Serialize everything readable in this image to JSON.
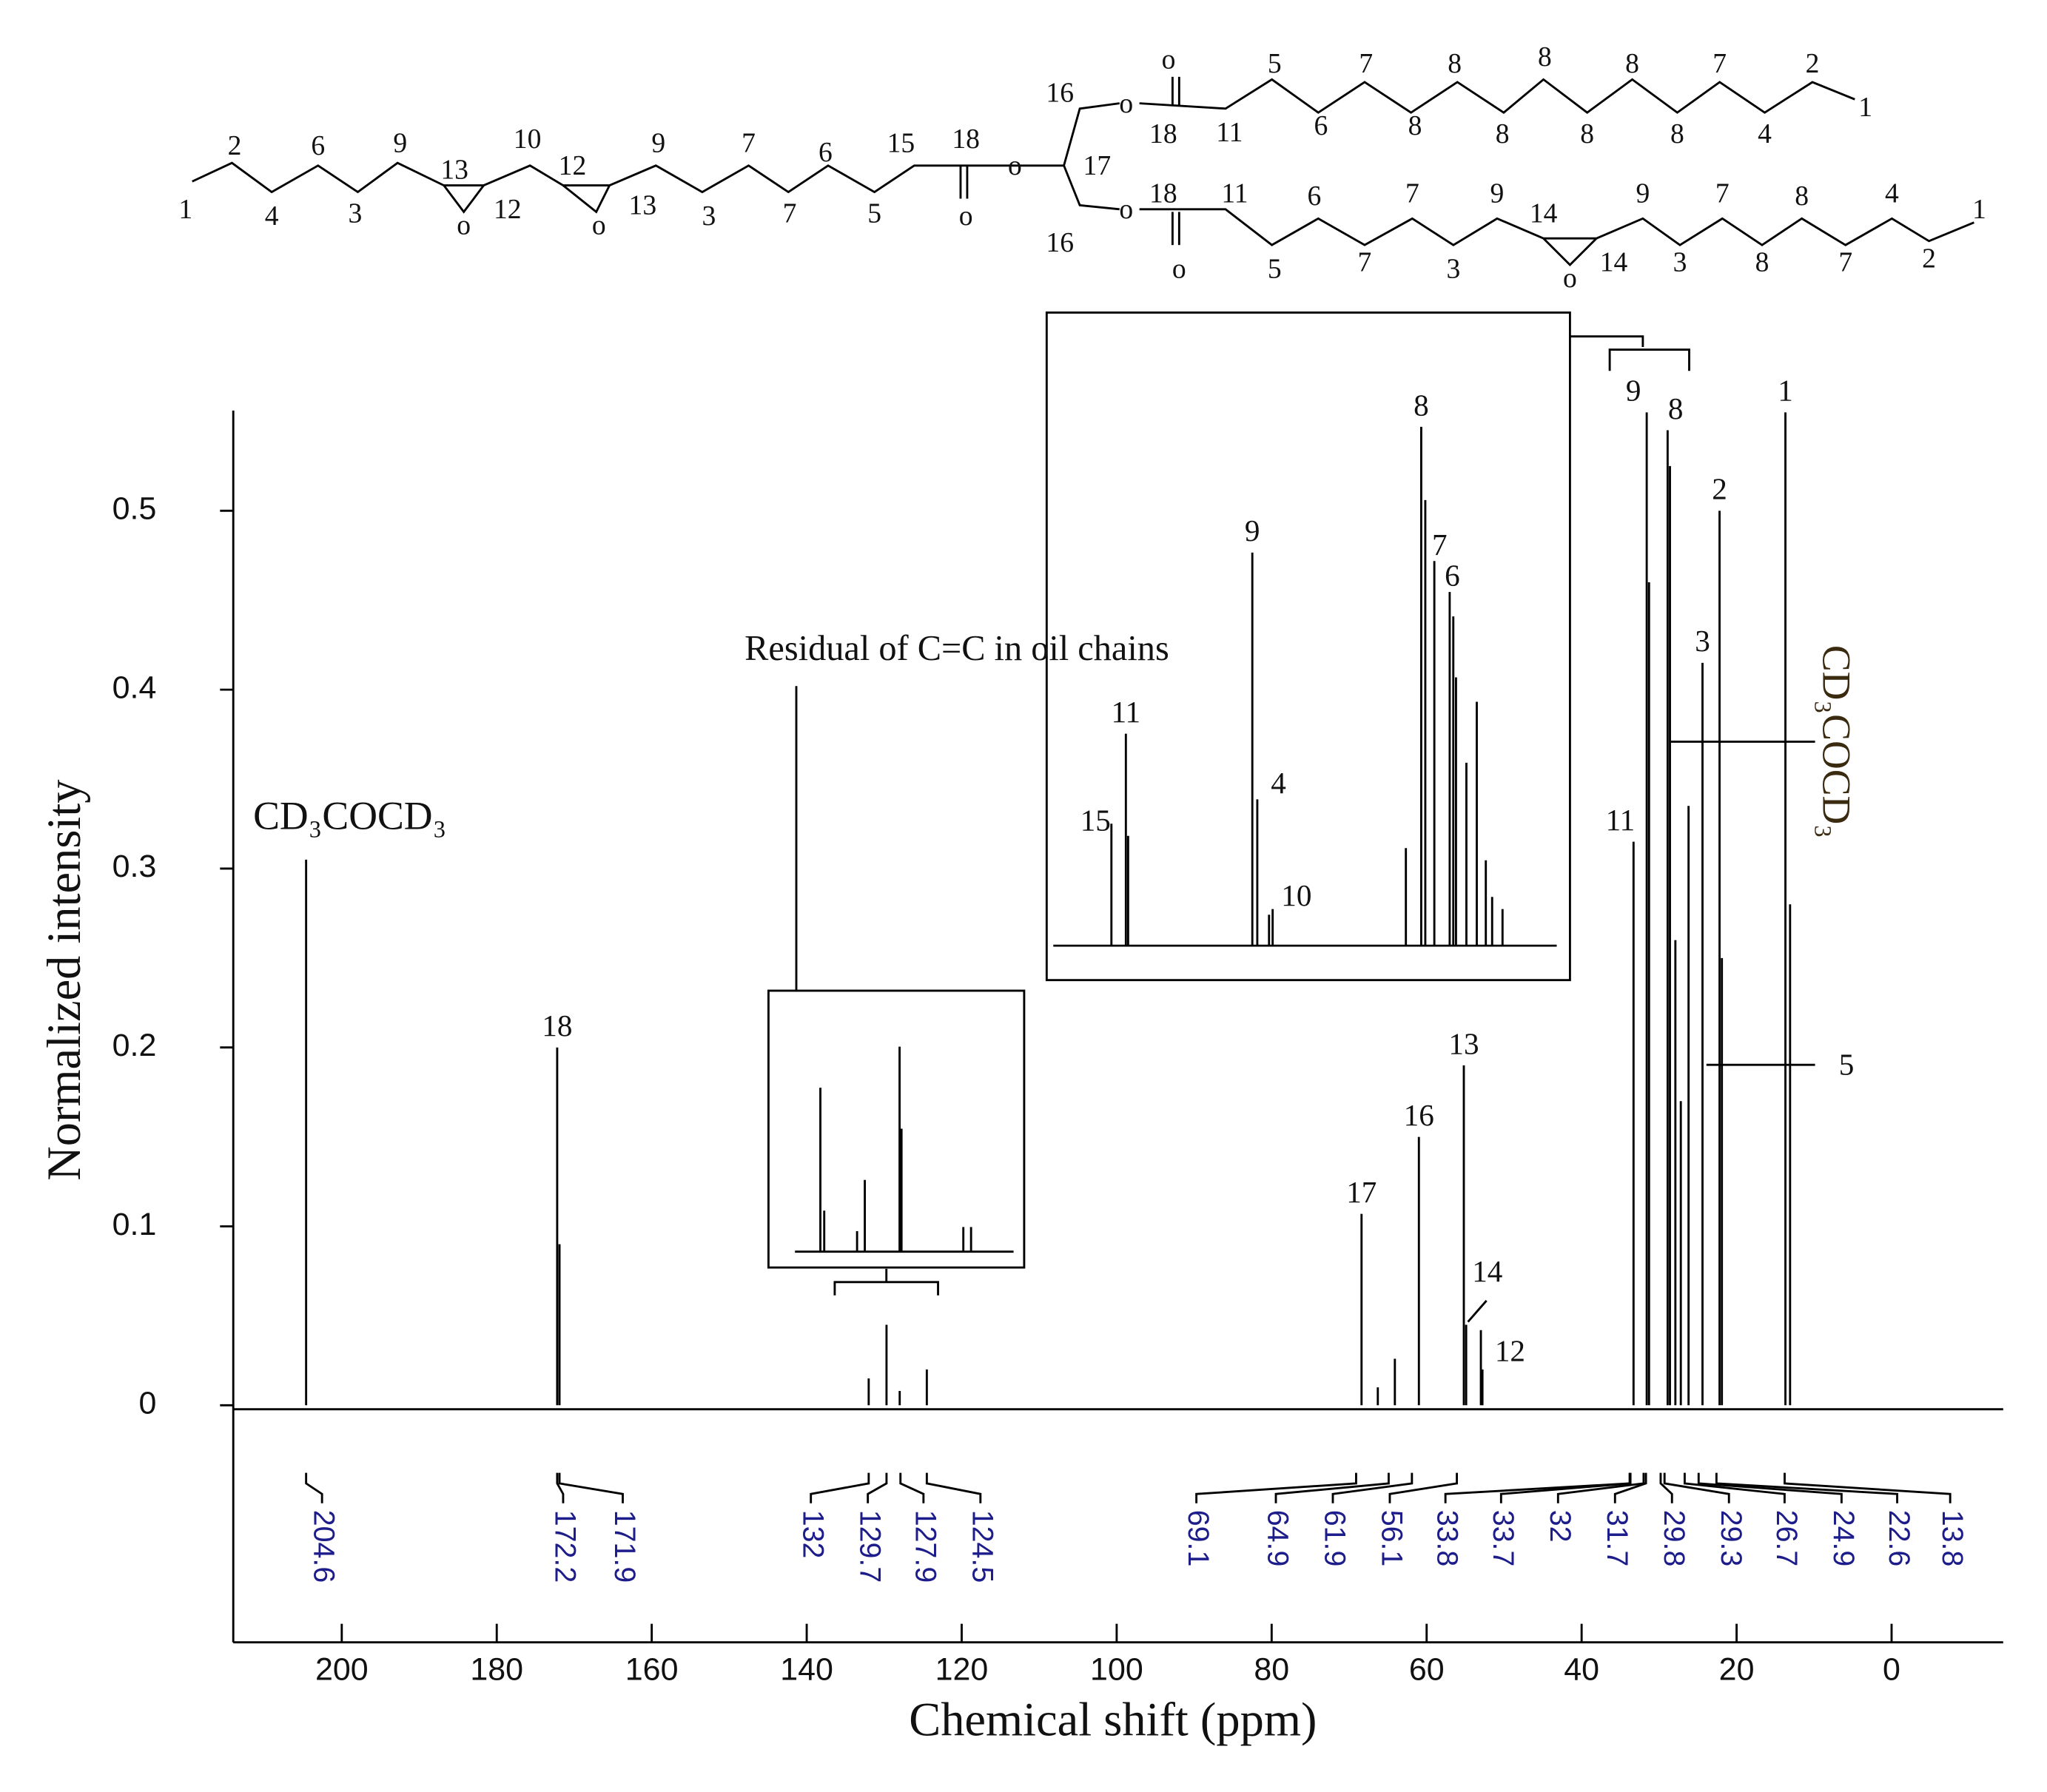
{
  "chart_data": {
    "type": "stem",
    "xlabel": "Chemical shift (ppm)",
    "ylabel": "Normalized intensity",
    "xlim": [
      214,
      -14.4
    ],
    "xticks": [
      200,
      180,
      160,
      140,
      120,
      100,
      80,
      60,
      40,
      20,
      0
    ],
    "ylim": [
      0,
      0.556
    ],
    "yticks": [
      0,
      0.1,
      0.2,
      0.3,
      0.4,
      0.5
    ],
    "color": "#000000",
    "x": [
      204.6,
      172.2,
      171.9,
      132.0,
      129.7,
      128.0,
      124.5,
      68.4,
      66.3,
      64.1,
      61.0,
      55.2,
      54.9,
      53.0,
      52.8,
      33.3,
      31.6,
      31.3,
      28.9,
      28.6,
      27.9,
      27.2,
      26.2,
      24.4,
      22.2,
      21.9,
      13.7,
      13.1
    ],
    "values": [
      0.305,
      0.2,
      0.09,
      0.015,
      0.045,
      0.008,
      0.02,
      0.107,
      0.01,
      0.026,
      0.15,
      0.19,
      0.045,
      0.042,
      0.02,
      0.315,
      0.555,
      0.46,
      0.545,
      0.525,
      0.26,
      0.17,
      0.335,
      0.415,
      0.5,
      0.25,
      0.555,
      0.28
    ],
    "labels": [
      "CD₃COCD₃",
      "18",
      null,
      null,
      null,
      null,
      null,
      "17",
      null,
      null,
      "16",
      "13",
      "14",
      "12",
      null,
      "11",
      "9",
      null,
      "8",
      null,
      null,
      null,
      null,
      "3",
      "2",
      null,
      "1",
      null
    ],
    "annotations": [
      "5",
      "CD₃COCD₃"
    ],
    "shift_labels": [
      204.6,
      172.2,
      171.9,
      132.0,
      129.7,
      127.9,
      124.5,
      69.1,
      64.9,
      61.9,
      56.1,
      33.8,
      33.7,
      32.0,
      31.7,
      29.8,
      29.3,
      26.7,
      24.9,
      22.6,
      13.8
    ],
    "insets": [
      {
        "title": "Residual of C=C in  oil chains",
        "xlim": [
          134,
          122
        ],
        "ylim": [
          0,
          1.1
        ],
        "x": [
          132.0,
          131.8,
          130.1,
          129.7,
          127.9,
          127.8,
          124.6,
          124.2
        ],
        "values": [
          0.8,
          0.2,
          0.1,
          0.35,
          1.0,
          0.6,
          0.12,
          0.12
        ],
        "labels": [
          null,
          null,
          null,
          null,
          null,
          null,
          null,
          null
        ]
      },
      {
        "xlim": [
          35.5,
          24.5
        ],
        "ylim": [
          0,
          0.6
        ],
        "x": [
          34.36,
          34.04,
          33.99,
          31.24,
          31.13,
          30.87,
          30.79,
          27.84,
          27.5,
          27.41,
          27.21,
          26.87,
          26.79,
          26.73,
          26.5,
          26.27,
          26.07,
          25.93,
          25.7
        ],
        "values": [
          0.13,
          0.226,
          0.117,
          0.419,
          0.156,
          0.033,
          0.039,
          0.104,
          0.553,
          0.475,
          0.41,
          0.377,
          0.351,
          0.286,
          0.195,
          0.26,
          0.091,
          0.052,
          0.039
        ],
        "labels": [
          "15",
          "11",
          null,
          "9",
          "4",
          null,
          "10",
          null,
          "8",
          null,
          "7",
          "6",
          null,
          null,
          null,
          null,
          null,
          null,
          null
        ]
      }
    ]
  },
  "structure": {
    "labels": [
      "1",
      "2",
      "4",
      "6",
      "3",
      "9",
      "13",
      "o",
      "12",
      "10",
      "12",
      "o",
      "13",
      "9",
      "3",
      "7",
      "7",
      "6",
      "5",
      "15",
      "18",
      "o",
      "o",
      "17",
      "16",
      "16",
      "o",
      "18",
      "o",
      "11",
      "5",
      "6",
      "7",
      "8",
      "8",
      "8",
      "8",
      "8",
      "8",
      "8",
      "7",
      "4",
      "2",
      "1",
      "o",
      "18",
      "o",
      "11",
      "5",
      "6",
      "7",
      "7",
      "3",
      "9",
      "14",
      "o",
      "14",
      "9",
      "3",
      "7",
      "8",
      "8",
      "7",
      "4",
      "2",
      "1"
    ]
  }
}
